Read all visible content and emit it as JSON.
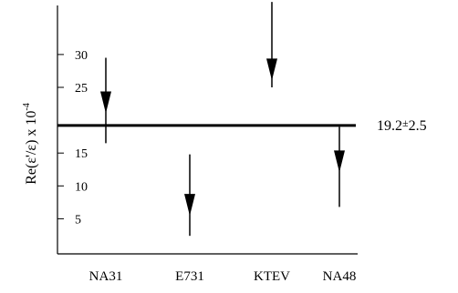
{
  "chart_data": {
    "type": "scatter",
    "title": "",
    "xlabel": "",
    "ylabel": "Re(ε'/ε) x 10",
    "ylabel_exponent": "-4",
    "yticks": [
      5,
      10,
      15,
      25,
      30
    ],
    "ylim": [
      0,
      38
    ],
    "grid": false,
    "categories": [
      "NA31",
      "E731",
      "KTEV",
      "NA48"
    ],
    "measurements": [
      {
        "category": "NA31",
        "value": 23.0,
        "low": 16.5,
        "high": 29.5
      },
      {
        "category": "E731",
        "value": 7.4,
        "low": 2.4,
        "high": 14.8
      },
      {
        "category": "KTEV",
        "value": 28.0,
        "low": 25.0,
        "high": 38.0
      },
      {
        "category": "NA48",
        "value": 14.0,
        "low": 6.8,
        "high": 19.0
      }
    ],
    "reference_line": {
      "value": 19.2,
      "error": 2.5,
      "label_value": "19.2",
      "label_pm": "±",
      "label_error": "2.5"
    }
  }
}
